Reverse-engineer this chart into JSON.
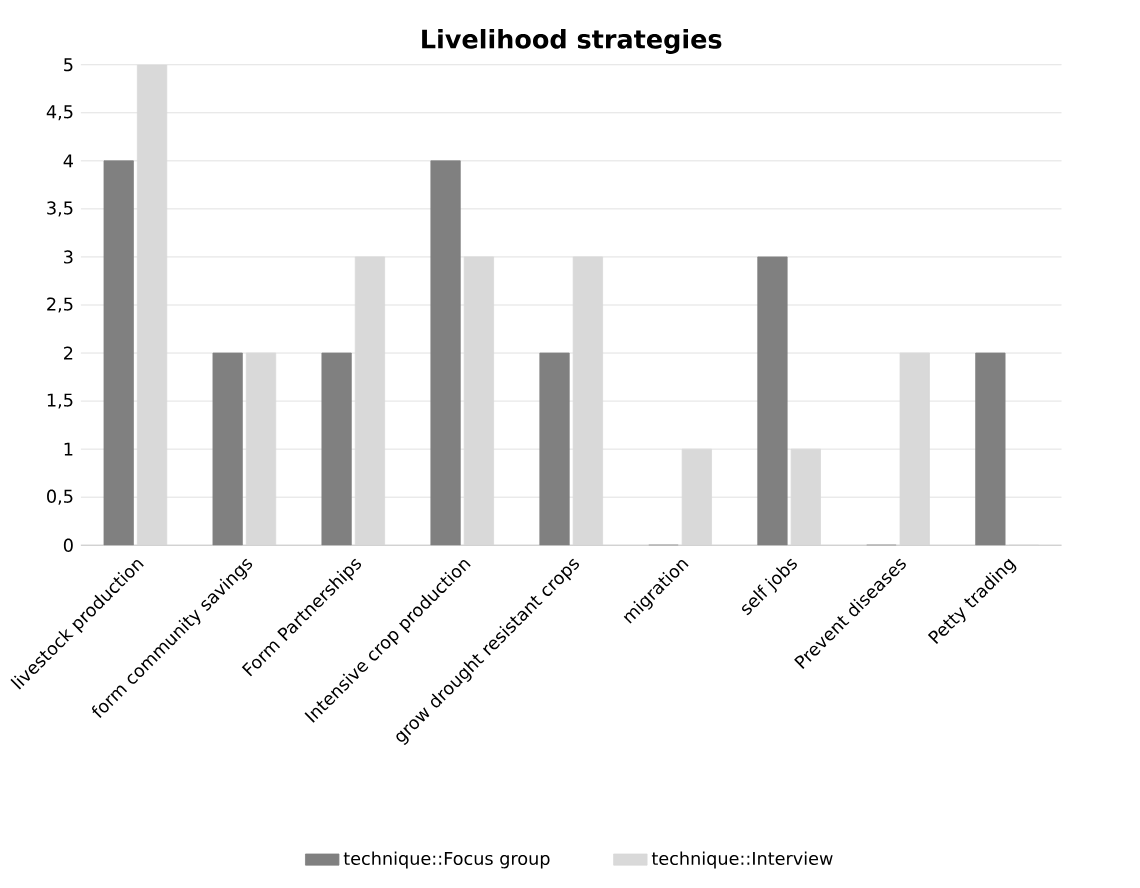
{
  "chart_data": {
    "type": "bar",
    "title": "Livelihood strategies",
    "categories": [
      "livestock production",
      "form community savings",
      "Form Partnerships",
      "Intensive crop production",
      "grow drought resistant crops",
      "migration",
      "self jobs",
      "Prevent diseases",
      "Petty trading"
    ],
    "series": [
      {
        "name": "technique::Focus group",
        "color": "#808080",
        "values": [
          4,
          2,
          2,
          4,
          2,
          0,
          3,
          0,
          2
        ]
      },
      {
        "name": "technique::Interview",
        "color": "#d9d9d9",
        "values": [
          5,
          2,
          3,
          3,
          3,
          1,
          1,
          2,
          0
        ]
      }
    ],
    "ylim": [
      0,
      5
    ],
    "yticks": [
      0,
      {
        "value": 0.5,
        "label": "0,5"
      },
      1,
      {
        "value": 1.5,
        "label": "1,5"
      },
      2,
      {
        "value": 2.5,
        "label": "2,5"
      },
      3,
      {
        "value": 3.5,
        "label": "3,5"
      },
      4,
      {
        "value": 4.5,
        "label": "4,5"
      },
      5
    ],
    "grid": "y",
    "legend": "bottom"
  }
}
